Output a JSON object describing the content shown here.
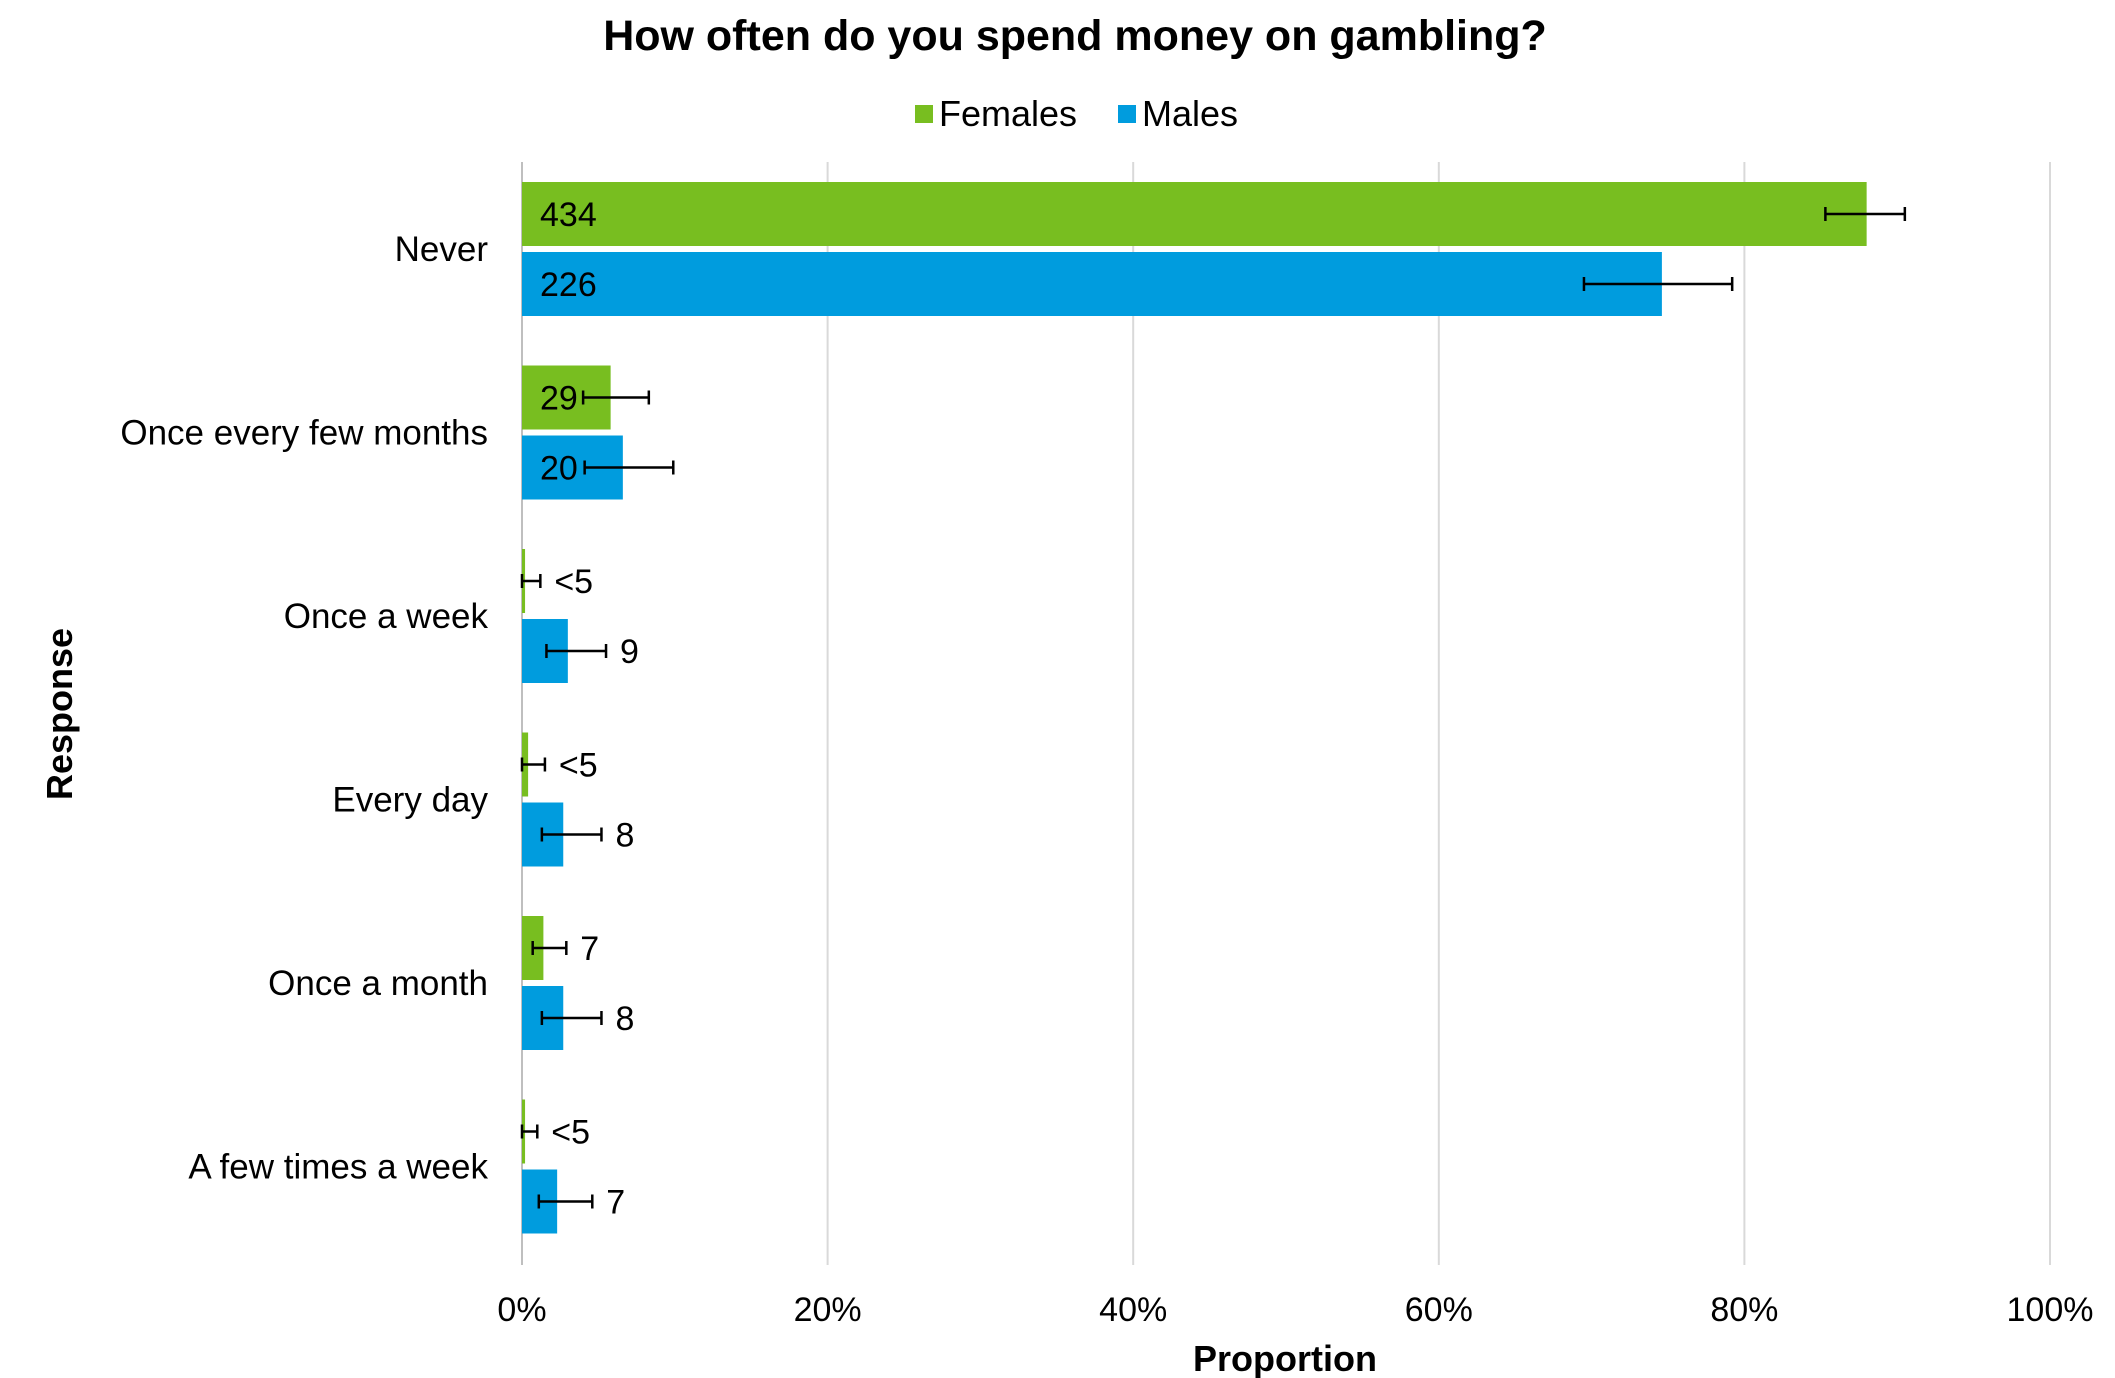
{
  "chart_data": {
    "type": "bar",
    "orientation": "horizontal",
    "title": "How often do you spend money on gambling?",
    "xlabel": "Proportion",
    "ylabel": "Response",
    "xlim": [
      0,
      1
    ],
    "x_ticks": [
      0,
      0.2,
      0.4,
      0.6,
      0.8,
      1.0
    ],
    "x_tick_labels": [
      "0%",
      "20%",
      "40%",
      "60%",
      "80%",
      "100%"
    ],
    "grid": true,
    "legend_position": "top",
    "categories": [
      "Never",
      "Once every few months",
      "Once a week",
      "Every day",
      "Once a month",
      "A few times a week"
    ],
    "series": [
      {
        "name": "Females",
        "color": "#78BE20",
        "values": [
          0.88,
          0.058,
          0.002,
          0.004,
          0.014,
          0.002
        ],
        "err_low": [
          0.853,
          0.04,
          0.0,
          0.0,
          0.007,
          0.0
        ],
        "err_high": [
          0.905,
          0.083,
          0.012,
          0.015,
          0.029,
          0.01
        ],
        "labels": [
          "434",
          "29",
          "<5",
          "<5",
          "7",
          "<5"
        ]
      },
      {
        "name": "Males",
        "color": "#009CDE",
        "values": [
          0.746,
          0.066,
          0.03,
          0.027,
          0.027,
          0.023
        ],
        "err_low": [
          0.695,
          0.041,
          0.016,
          0.013,
          0.013,
          0.011
        ],
        "err_high": [
          0.792,
          0.099,
          0.055,
          0.052,
          0.052,
          0.046
        ],
        "labels": [
          "226",
          "20",
          "9",
          "8",
          "8",
          "7"
        ]
      }
    ]
  }
}
